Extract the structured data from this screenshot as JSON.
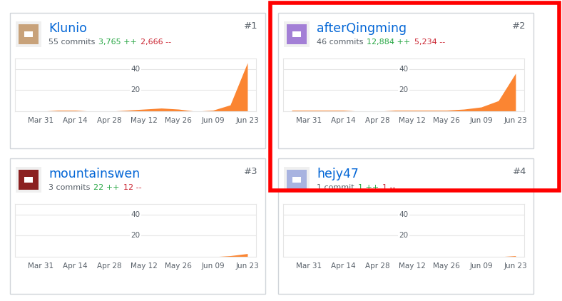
{
  "chart_data": [
    {
      "type": "area",
      "title": "Klunio",
      "subtitle": "55 commits",
      "annotations": [
        "3,765 ++",
        "2,666 --",
        "#1"
      ],
      "categories": [
        null,
        "Mar 31",
        null,
        "Apr 14",
        null,
        "Apr 28",
        null,
        "May 12",
        null,
        "May 26",
        null,
        "Jun 09",
        null,
        "Jun 23"
      ],
      "values": [
        0,
        0,
        1,
        1,
        0,
        0,
        1,
        2,
        3,
        2,
        0,
        1,
        6,
        46
      ],
      "color": "#fb8532",
      "ylim": [
        0,
        50
      ],
      "yticks": [
        20,
        40
      ],
      "grid": true
    },
    {
      "type": "area",
      "title": "afterQingming",
      "subtitle": "46 commits",
      "annotations": [
        "12,884 ++",
        "5,234 --",
        "#2"
      ],
      "categories": [
        null,
        "Mar 31",
        null,
        "Apr 14",
        null,
        "Apr 28",
        null,
        "May 12",
        null,
        "May 26",
        null,
        "Jun 09",
        null,
        "Jun 23"
      ],
      "values": [
        1,
        1,
        1,
        1,
        0,
        0,
        1,
        1,
        1,
        1,
        2,
        4,
        10,
        36
      ],
      "color": "#fb8532",
      "ylim": [
        0,
        50
      ],
      "yticks": [
        20,
        40
      ],
      "grid": true
    },
    {
      "type": "area",
      "title": "mountainswen",
      "subtitle": "3 commits",
      "annotations": [
        "22 ++",
        "12 --",
        "#3"
      ],
      "categories": [
        null,
        "Mar 31",
        null,
        "Apr 14",
        null,
        "Apr 28",
        null,
        "May 12",
        null,
        "May 26",
        null,
        "Jun 09",
        null,
        "Jun 23"
      ],
      "values": [
        0,
        0,
        0,
        0,
        0,
        0,
        0,
        0,
        0,
        0,
        0,
        0,
        1,
        3
      ],
      "color": "#fb8532",
      "ylim": [
        0,
        50
      ],
      "yticks": [
        20,
        40
      ],
      "grid": true
    },
    {
      "type": "area",
      "title": "hejy47",
      "subtitle": "1 commit",
      "annotations": [
        "1 ++",
        "1 --",
        "#4"
      ],
      "categories": [
        null,
        "Mar 31",
        null,
        "Apr 14",
        null,
        "Apr 28",
        null,
        "May 12",
        null,
        "May 26",
        null,
        "Jun 09",
        null,
        "Jun 23"
      ],
      "values": [
        0,
        0,
        0,
        0,
        0,
        0,
        0,
        0,
        0,
        0,
        0,
        0,
        0,
        1
      ],
      "color": "#fb8532",
      "ylim": [
        0,
        50
      ],
      "yticks": [
        20,
        40
      ],
      "grid": true
    }
  ]
}
